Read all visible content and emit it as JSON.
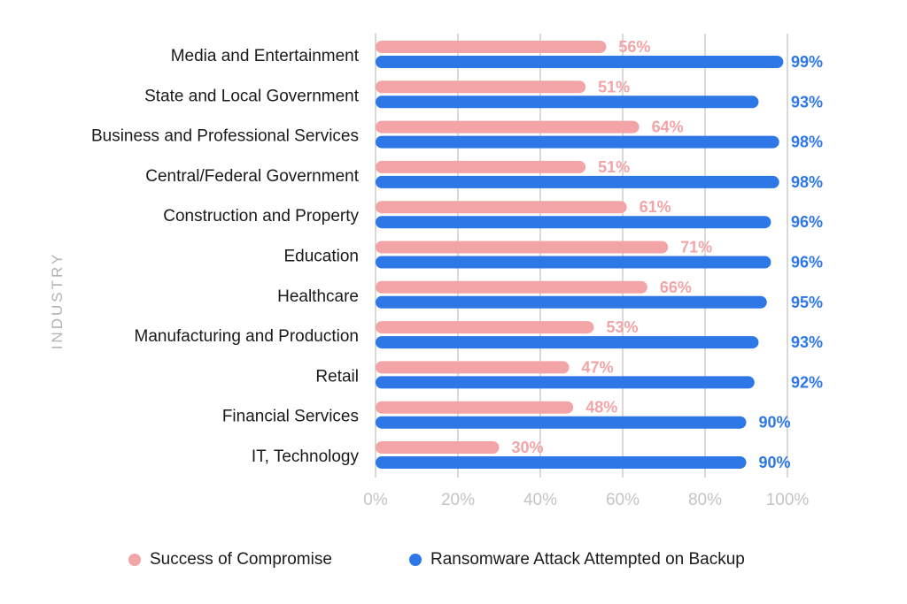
{
  "chart_data": {
    "type": "bar",
    "orientation": "horizontal",
    "ylabel": "INDUSTRY",
    "xlabel": "",
    "xlim": [
      0,
      100
    ],
    "x_ticks": [
      "0%",
      "20%",
      "40%",
      "60%",
      "80%",
      "100%"
    ],
    "grid": true,
    "legend_position": "bottom",
    "categories": [
      "Media and Entertainment",
      "State and Local Government",
      "Business and Professional Services",
      "Central/Federal Government",
      "Construction and Property",
      "Education",
      "Healthcare",
      "Manufacturing and Production",
      "Retail",
      "Financial Services",
      "IT, Technology"
    ],
    "series": [
      {
        "name": "Success of Compromise",
        "color": "#f3a4a6",
        "values": [
          56,
          51,
          64,
          51,
          61,
          71,
          66,
          53,
          47,
          48,
          30
        ],
        "labels": [
          "56%",
          "51%",
          "64%",
          "51%",
          "61%",
          "71%",
          "66%",
          "53%",
          "47%",
          "48%",
          "30%"
        ]
      },
      {
        "name": "Ransomware Attack Attempted on Backup",
        "color": "#2d78e6",
        "values": [
          99,
          93,
          98,
          98,
          96,
          96,
          95,
          93,
          92,
          90,
          90
        ],
        "labels": [
          "99%",
          "93%",
          "98%",
          "98%",
          "96%",
          "96%",
          "95%",
          "93%",
          "92%",
          "90%",
          "90%"
        ]
      }
    ]
  }
}
